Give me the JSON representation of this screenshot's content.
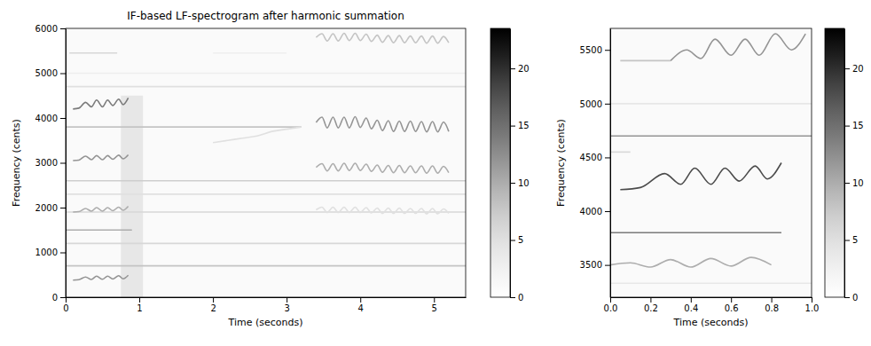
{
  "chart_data": [
    {
      "type": "heatmap",
      "title": "IF-based LF-spectrogram after harmonic summation",
      "x_label": "Time (seconds)",
      "y_label": "Frequency (cents)",
      "xlim": [
        0,
        5.43
      ],
      "ylim": [
        0,
        6000
      ],
      "xticks": [
        0,
        1,
        2,
        3,
        4,
        5
      ],
      "yticks": [
        0,
        1000,
        2000,
        3000,
        4000,
        5000,
        6000
      ],
      "colorbar": {
        "range": [
          0,
          23.5
        ],
        "ticks": [
          0,
          5,
          10,
          15,
          20
        ]
      },
      "regions": [
        {
          "x": [
            0,
            5.43
          ],
          "y": [
            0,
            6000
          ],
          "intensity": 1
        },
        {
          "x": [
            0.75,
            1.05
          ],
          "y": [
            0,
            4500
          ],
          "intensity": 4
        }
      ],
      "series": [
        {
          "x": [
            0,
            5.43
          ],
          "values": [
            700,
            700
          ],
          "intensity": 8
        },
        {
          "x": [
            0,
            5.43
          ],
          "values": [
            1200,
            1200
          ],
          "intensity": 6
        },
        {
          "x": [
            0,
            5.43
          ],
          "values": [
            1900,
            1900
          ],
          "intensity": 6
        },
        {
          "x": [
            0,
            5.43
          ],
          "values": [
            2300,
            2300
          ],
          "intensity": 5
        },
        {
          "x": [
            0,
            5.43
          ],
          "values": [
            2600,
            2600
          ],
          "intensity": 7
        },
        {
          "x": [
            0,
            3.2
          ],
          "values": [
            3800,
            3800
          ],
          "intensity": 8
        },
        {
          "x": [
            0,
            0.9
          ],
          "values": [
            1500,
            1500
          ],
          "intensity": 10
        },
        {
          "x": [
            0,
            5.43
          ],
          "values": [
            4700,
            4700
          ],
          "intensity": 5
        },
        {
          "x": [
            0,
            5.43
          ],
          "values": [
            5000,
            5000
          ],
          "intensity": 3
        },
        {
          "x": [
            0.05,
            0.7
          ],
          "values": [
            5450,
            5450
          ],
          "intensity": 6
        },
        {
          "x": [
            0.1,
            0.18,
            0.27,
            0.35,
            0.42,
            0.5,
            0.57,
            0.64,
            0.72,
            0.78,
            0.85
          ],
          "values": [
            4200,
            4220,
            4350,
            4250,
            4400,
            4250,
            4400,
            4280,
            4420,
            4300,
            4450
          ],
          "intensity": 14
        },
        {
          "x": [
            0.1,
            0.18,
            0.27,
            0.35,
            0.42,
            0.5,
            0.57,
            0.64,
            0.72,
            0.78,
            0.85
          ],
          "values": [
            3050,
            3060,
            3150,
            3070,
            3160,
            3070,
            3160,
            3080,
            3170,
            3090,
            3180
          ],
          "intensity": 12
        },
        {
          "x": [
            0.1,
            0.18,
            0.27,
            0.35,
            0.42,
            0.5,
            0.57,
            0.64,
            0.72,
            0.78,
            0.85
          ],
          "values": [
            1900,
            1910,
            1980,
            1920,
            2000,
            1920,
            2000,
            1930,
            2010,
            1940,
            2030
          ],
          "intensity": 10
        },
        {
          "x": [
            0.1,
            0.18,
            0.27,
            0.35,
            0.42,
            0.5,
            0.57,
            0.64,
            0.72,
            0.78,
            0.85
          ],
          "values": [
            380,
            390,
            450,
            395,
            470,
            400,
            470,
            405,
            480,
            410,
            490
          ],
          "intensity": 12
        },
        {
          "x": [
            2.0,
            2.2,
            2.4,
            2.6,
            2.8,
            3.0,
            3.2
          ],
          "values": [
            3450,
            3500,
            3550,
            3600,
            3700,
            3750,
            3800
          ],
          "intensity": 5
        },
        {
          "x": [
            2.0,
            3.0
          ],
          "values": [
            5450,
            5450
          ],
          "intensity": 3
        },
        {
          "x": [
            3.4,
            3.48,
            3.55,
            3.63,
            3.7,
            3.78,
            3.85,
            3.93,
            4.0,
            4.08,
            4.15,
            4.23,
            4.3,
            4.38,
            4.45,
            4.53,
            4.6,
            4.68,
            4.75,
            4.83,
            4.9,
            4.98,
            5.05,
            5.13,
            5.2
          ],
          "values": [
            3900,
            4020,
            3780,
            4020,
            3780,
            4020,
            3780,
            4030,
            3790,
            4000,
            3760,
            3950,
            3720,
            3940,
            3700,
            3930,
            3700,
            3930,
            3700,
            3920,
            3690,
            3920,
            3690,
            3910,
            3700
          ],
          "intensity": 12
        },
        {
          "x": [
            3.4,
            3.48,
            3.55,
            3.63,
            3.7,
            3.78,
            3.85,
            3.93,
            4.0,
            4.08,
            4.15,
            4.23,
            4.3,
            4.38,
            4.45,
            4.53,
            4.6,
            4.68,
            4.75,
            4.83,
            4.9,
            4.98,
            5.05,
            5.13,
            5.2
          ],
          "values": [
            2900,
            2980,
            2820,
            2980,
            2820,
            2990,
            2830,
            2990,
            2830,
            2970,
            2810,
            2950,
            2790,
            2940,
            2780,
            2940,
            2780,
            2930,
            2780,
            2930,
            2770,
            2930,
            2770,
            2920,
            2780
          ],
          "intensity": 10
        },
        {
          "x": [
            3.4,
            3.48,
            3.55,
            3.63,
            3.7,
            3.78,
            3.85,
            3.93,
            4.0,
            4.08,
            4.15,
            4.23,
            4.3,
            4.38,
            4.45,
            4.53,
            4.6,
            4.68,
            4.75,
            4.83,
            4.9,
            4.98,
            5.05,
            5.13,
            5.2
          ],
          "values": [
            5800,
            5880,
            5720,
            5880,
            5720,
            5890,
            5730,
            5890,
            5730,
            5870,
            5710,
            5850,
            5690,
            5840,
            5680,
            5840,
            5680,
            5830,
            5680,
            5830,
            5670,
            5830,
            5670,
            5820,
            5680
          ],
          "intensity": 8
        },
        {
          "x": [
            3.4,
            3.48,
            3.55,
            3.63,
            3.7,
            3.78,
            3.85,
            3.93,
            4.0,
            4.08,
            4.15,
            4.23,
            4.3,
            4.38,
            4.45,
            4.53,
            4.6,
            4.68,
            4.75,
            4.83,
            4.9,
            4.98,
            5.05,
            5.13,
            5.2
          ],
          "values": [
            1950,
            2010,
            1890,
            2010,
            1890,
            2010,
            1890,
            2010,
            1890,
            2000,
            1880,
            1990,
            1870,
            1990,
            1870,
            1990,
            1870,
            1980,
            1870,
            1980,
            1860,
            1980,
            1860,
            1970,
            1870
          ],
          "intensity": 5
        }
      ]
    },
    {
      "type": "heatmap",
      "x_label": "Time (seconds)",
      "y_label": "Frequency (cents)",
      "xlim": [
        0,
        1
      ],
      "ylim": [
        3200,
        5700
      ],
      "xticks": [
        {
          "value": 0,
          "label": "0.0"
        },
        {
          "value": 0.2,
          "label": "0.2"
        },
        {
          "value": 0.4,
          "label": "0.4"
        },
        {
          "value": 0.6,
          "label": "0.6"
        },
        {
          "value": 0.8,
          "label": "0.8"
        },
        {
          "value": 1,
          "label": "1.0"
        }
      ],
      "yticks": [
        3500,
        4000,
        4500,
        5000,
        5500
      ],
      "colorbar": {
        "range": [
          0,
          23.5
        ],
        "ticks": [
          0,
          5,
          10,
          15,
          20
        ]
      },
      "regions": [
        {
          "x": [
            0,
            1
          ],
          "y": [
            3200,
            5700
          ],
          "intensity": 1
        }
      ],
      "series": [
        {
          "x": [
            0.05,
            0.15,
            0.27,
            0.35,
            0.42,
            0.5,
            0.57,
            0.64,
            0.72,
            0.78,
            0.85
          ],
          "values": [
            4200,
            4220,
            4350,
            4250,
            4400,
            4250,
            4400,
            4280,
            4420,
            4300,
            4450
          ],
          "intensity": 18
        },
        {
          "x": [
            0.3,
            0.38,
            0.45,
            0.52,
            0.6,
            0.67,
            0.74,
            0.82,
            0.9,
            0.97
          ],
          "values": [
            5400,
            5500,
            5420,
            5600,
            5450,
            5600,
            5450,
            5650,
            5500,
            5650
          ],
          "intensity": 12
        },
        {
          "x": [
            0.05,
            0.3
          ],
          "values": [
            5400,
            5400
          ],
          "intensity": 8
        },
        {
          "x": [
            0,
            1
          ],
          "values": [
            4700,
            4700
          ],
          "intensity": 12
        },
        {
          "x": [
            0,
            0.85
          ],
          "values": [
            3800,
            3800
          ],
          "intensity": 14
        },
        {
          "x": [
            0,
            0.1,
            0.2,
            0.3,
            0.4,
            0.5,
            0.6,
            0.7,
            0.8
          ],
          "values": [
            3500,
            3520,
            3480,
            3550,
            3480,
            3560,
            3490,
            3570,
            3500
          ],
          "intensity": 10
        },
        {
          "x": [
            0,
            1
          ],
          "values": [
            5000,
            5000
          ],
          "intensity": 4
        },
        {
          "x": [
            0,
            0.1
          ],
          "values": [
            4550,
            4550
          ],
          "intensity": 6
        },
        {
          "x": [
            0,
            1
          ],
          "values": [
            3330,
            3330
          ],
          "intensity": 4
        }
      ]
    }
  ]
}
